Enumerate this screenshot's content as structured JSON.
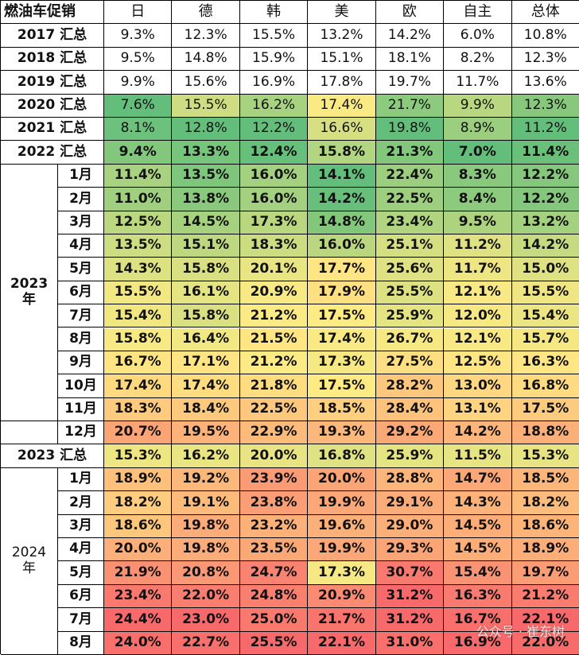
{
  "header": {
    "corner": "燃油车促销",
    "columns": [
      "日",
      "德",
      "韩",
      "美",
      "欧",
      "自主",
      "总体"
    ]
  },
  "sections": [
    {
      "rows": [
        {
          "label": "2017 汇总",
          "values": [
            "9.3%",
            "12.3%",
            "15.5%",
            "13.2%",
            "14.2%",
            "6.0%",
            "10.8%"
          ]
        },
        {
          "label": "2018 汇总",
          "values": [
            "9.5%",
            "14.8%",
            "15.9%",
            "15.1%",
            "18.1%",
            "8.2%",
            "12.3%"
          ]
        },
        {
          "label": "2019 汇总",
          "values": [
            "9.9%",
            "15.6%",
            "16.9%",
            "17.8%",
            "19.7%",
            "11.7%",
            "13.6%"
          ]
        },
        {
          "label": "2020 汇总",
          "values": [
            "7.6%",
            "15.5%",
            "16.2%",
            "17.4%",
            "21.7%",
            "9.9%",
            "12.3%"
          ]
        },
        {
          "label": "2021 汇总",
          "values": [
            "8.1%",
            "12.8%",
            "12.2%",
            "16.6%",
            "19.8%",
            "8.9%",
            "11.2%"
          ]
        },
        {
          "label": "2022 汇总",
          "values": [
            "9.4%",
            "13.3%",
            "12.4%",
            "15.8%",
            "21.3%",
            "7.0%",
            "11.4%"
          ]
        }
      ]
    },
    {
      "title": [
        "2023",
        "年"
      ],
      "rows": [
        {
          "label": "1月",
          "values": [
            "11.4%",
            "13.5%",
            "16.0%",
            "14.1%",
            "22.4%",
            "8.3%",
            "12.2%"
          ]
        },
        {
          "label": "2月",
          "values": [
            "11.0%",
            "13.8%",
            "16.0%",
            "14.2%",
            "22.5%",
            "8.4%",
            "12.2%"
          ]
        },
        {
          "label": "3月",
          "values": [
            "12.5%",
            "14.5%",
            "17.3%",
            "14.8%",
            "23.4%",
            "9.5%",
            "13.2%"
          ]
        },
        {
          "label": "4月",
          "values": [
            "13.5%",
            "15.1%",
            "18.3%",
            "16.0%",
            "25.1%",
            "11.2%",
            "14.2%"
          ]
        },
        {
          "label": "5月",
          "values": [
            "14.3%",
            "15.8%",
            "20.1%",
            "17.7%",
            "25.6%",
            "11.7%",
            "15.0%"
          ]
        },
        {
          "label": "6月",
          "values": [
            "15.5%",
            "16.1%",
            "20.9%",
            "17.9%",
            "25.5%",
            "12.1%",
            "15.5%"
          ]
        },
        {
          "label": "7月",
          "values": [
            "15.4%",
            "15.8%",
            "21.2%",
            "17.5%",
            "25.9%",
            "12.0%",
            "15.4%"
          ]
        },
        {
          "label": "8月",
          "values": [
            "15.8%",
            "16.4%",
            "21.5%",
            "17.4%",
            "26.7%",
            "12.1%",
            "15.7%"
          ]
        },
        {
          "label": "9月",
          "values": [
            "16.7%",
            "17.1%",
            "21.2%",
            "17.3%",
            "27.5%",
            "12.5%",
            "16.3%"
          ]
        },
        {
          "label": "10月",
          "values": [
            "17.4%",
            "17.4%",
            "21.8%",
            "17.5%",
            "28.2%",
            "13.0%",
            "16.8%"
          ]
        },
        {
          "label": "11月",
          "values": [
            "18.3%",
            "18.4%",
            "22.5%",
            "18.5%",
            "28.4%",
            "13.1%",
            "17.5%"
          ]
        }
      ]
    },
    {
      "title": null,
      "rows": [
        {
          "label": "12月",
          "values": [
            "20.7%",
            "19.5%",
            "22.9%",
            "19.3%",
            "29.2%",
            "14.2%",
            "18.8%"
          ]
        }
      ]
    },
    {
      "rows": [
        {
          "label": "2023 汇总",
          "values": [
            "15.3%",
            "16.2%",
            "20.0%",
            "16.8%",
            "25.9%",
            "11.5%",
            "15.3%"
          ]
        }
      ]
    },
    {
      "title": [
        "2024",
        "年"
      ],
      "rows": [
        {
          "label": "1月",
          "values": [
            "18.9%",
            "19.2%",
            "23.9%",
            "20.0%",
            "28.8%",
            "14.7%",
            "18.5%"
          ]
        },
        {
          "label": "2月",
          "values": [
            "18.2%",
            "19.1%",
            "23.8%",
            "19.9%",
            "29.1%",
            "14.3%",
            "18.2%"
          ]
        },
        {
          "label": "3月",
          "values": [
            "18.6%",
            "19.8%",
            "23.2%",
            "19.6%",
            "29.0%",
            "14.5%",
            "18.6%"
          ]
        },
        {
          "label": "4月",
          "values": [
            "20.0%",
            "19.8%",
            "23.5%",
            "19.9%",
            "29.3%",
            "14.5%",
            "18.9%"
          ]
        },
        {
          "label": "5月",
          "values": [
            "21.9%",
            "20.8%",
            "24.7%",
            "17.3%",
            "30.7%",
            "15.4%",
            "19.7%"
          ]
        },
        {
          "label": "6月",
          "values": [
            "23.4%",
            "22.0%",
            "24.8%",
            "20.9%",
            "31.2%",
            "16.3%",
            "21.2%"
          ]
        },
        {
          "label": "7月",
          "values": [
            "24.4%",
            "23.0%",
            "25.0%",
            "21.7%",
            "31.2%",
            "16.7%",
            "22.1%"
          ]
        },
        {
          "label": "8月",
          "values": [
            "24.0%",
            "22.7%",
            "25.5%",
            "22.1%",
            "31.0%",
            "16.9%",
            "22.0%"
          ]
        }
      ]
    }
  ],
  "watermark": "公众号 · 崔东树"
}
